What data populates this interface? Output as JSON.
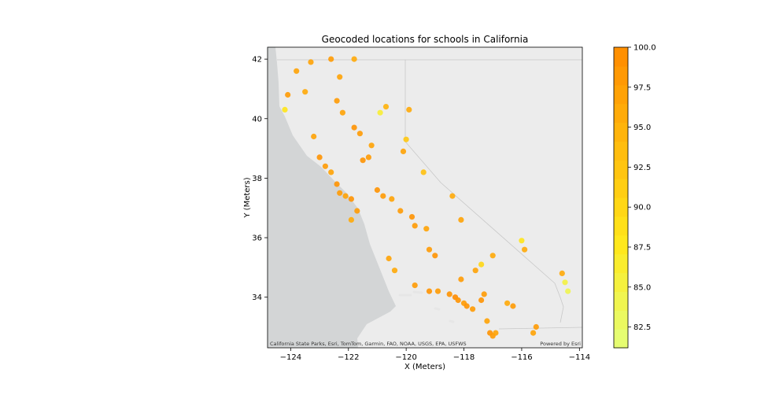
{
  "chart_data": {
    "type": "scatter",
    "title": "Geocoded locations for schools in California",
    "xlabel": "X (Meters)",
    "ylabel": "Y (Meters)",
    "xlim": [
      -124.8,
      -113.9
    ],
    "ylim": [
      32.3,
      42.4
    ],
    "x_ticks": [
      -124,
      -122,
      -120,
      -118,
      -116,
      -114
    ],
    "x_tick_labels": [
      "−124",
      "−122",
      "−120",
      "−118",
      "−116",
      "−114"
    ],
    "y_ticks": [
      34,
      36,
      38,
      40,
      42
    ],
    "y_tick_labels": [
      "34",
      "36",
      "38",
      "40",
      "42"
    ],
    "grid": false,
    "basemap_attribution_left": "California State Parks, Esri, TomTom, Garmin, FAO, NOAA, USGS, EPA, USFWS",
    "basemap_attribution_right": "Powered by Esri",
    "colorbar": {
      "min": 81.2,
      "max": 100.0,
      "ticks": [
        82.5,
        85.0,
        87.5,
        90.0,
        92.5,
        95.0,
        97.5,
        100.0
      ],
      "tick_labels": [
        "82.5",
        "85.0",
        "87.5",
        "90.0",
        "92.5",
        "95.0",
        "97.5",
        "100.0"
      ],
      "colormap": "Wistia",
      "low_color": "#e4ff7a",
      "mid_color": "#ffe81a",
      "high_color": "#ff8c00"
    },
    "series": [
      {
        "points": [
          [
            -124.1,
            40.8,
            98
          ],
          [
            -124.2,
            40.3,
            88
          ],
          [
            -123.8,
            41.6,
            97
          ],
          [
            -123.5,
            40.9,
            96
          ],
          [
            -123.2,
            39.4,
            97
          ],
          [
            -123.0,
            38.7,
            99
          ],
          [
            -122.8,
            38.4,
            98
          ],
          [
            -122.6,
            38.2,
            97
          ],
          [
            -122.4,
            37.8,
            99
          ],
          [
            -122.3,
            37.5,
            98
          ],
          [
            -122.1,
            37.4,
            97
          ],
          [
            -121.9,
            37.3,
            99
          ],
          [
            -121.9,
            36.6,
            96
          ],
          [
            -121.7,
            36.9,
            98
          ],
          [
            -121.5,
            38.6,
            99
          ],
          [
            -121.3,
            38.7,
            98
          ],
          [
            -121.2,
            39.1,
            97
          ],
          [
            -122.4,
            40.6,
            98
          ],
          [
            -122.2,
            40.2,
            97
          ],
          [
            -121.8,
            39.7,
            99
          ],
          [
            -121.6,
            39.5,
            98
          ],
          [
            -121.0,
            37.6,
            99
          ],
          [
            -120.8,
            37.4,
            98
          ],
          [
            -120.5,
            37.3,
            97
          ],
          [
            -120.2,
            36.9,
            98
          ],
          [
            -119.8,
            36.7,
            99
          ],
          [
            -119.7,
            36.4,
            98
          ],
          [
            -119.3,
            36.3,
            97
          ],
          [
            -119.0,
            35.4,
            99
          ],
          [
            -119.2,
            35.6,
            98
          ],
          [
            -120.6,
            35.3,
            97
          ],
          [
            -120.4,
            34.9,
            96
          ],
          [
            -119.7,
            34.4,
            98
          ],
          [
            -119.2,
            34.2,
            99
          ],
          [
            -118.9,
            34.2,
            98
          ],
          [
            -118.5,
            34.1,
            99
          ],
          [
            -118.3,
            34.0,
            100
          ],
          [
            -118.2,
            33.9,
            99
          ],
          [
            -118.0,
            33.8,
            98
          ],
          [
            -117.9,
            33.7,
            99
          ],
          [
            -117.7,
            33.6,
            98
          ],
          [
            -117.4,
            33.9,
            99
          ],
          [
            -117.3,
            34.1,
            98
          ],
          [
            -117.2,
            33.2,
            97
          ],
          [
            -117.1,
            32.8,
            99
          ],
          [
            -117.0,
            32.7,
            98
          ],
          [
            -116.9,
            32.8,
            97
          ],
          [
            -116.5,
            33.8,
            96
          ],
          [
            -116.3,
            33.7,
            98
          ],
          [
            -115.6,
            32.8,
            97
          ],
          [
            -115.5,
            33.0,
            98
          ],
          [
            -114.6,
            34.8,
            96
          ],
          [
            -114.5,
            34.5,
            85
          ],
          [
            -114.4,
            34.2,
            84
          ],
          [
            -116.0,
            35.9,
            88
          ],
          [
            -115.9,
            35.6,
            96
          ],
          [
            -117.6,
            34.9,
            97
          ],
          [
            -117.4,
            35.1,
            90
          ],
          [
            -118.1,
            34.6,
            98
          ],
          [
            -120.0,
            39.3,
            92
          ],
          [
            -120.1,
            38.9,
            97
          ],
          [
            -120.7,
            40.4,
            95
          ],
          [
            -120.9,
            40.2,
            86
          ],
          [
            -122.3,
            41.4,
            97
          ],
          [
            -121.8,
            42.0,
            96
          ],
          [
            -122.6,
            42.0,
            98
          ],
          [
            -123.3,
            41.9,
            97
          ],
          [
            -119.9,
            40.3,
            96
          ],
          [
            -119.4,
            38.2,
            93
          ],
          [
            -118.4,
            37.4,
            96
          ],
          [
            -118.1,
            36.6,
            97
          ],
          [
            -117.0,
            35.4,
            96
          ]
        ]
      }
    ]
  }
}
